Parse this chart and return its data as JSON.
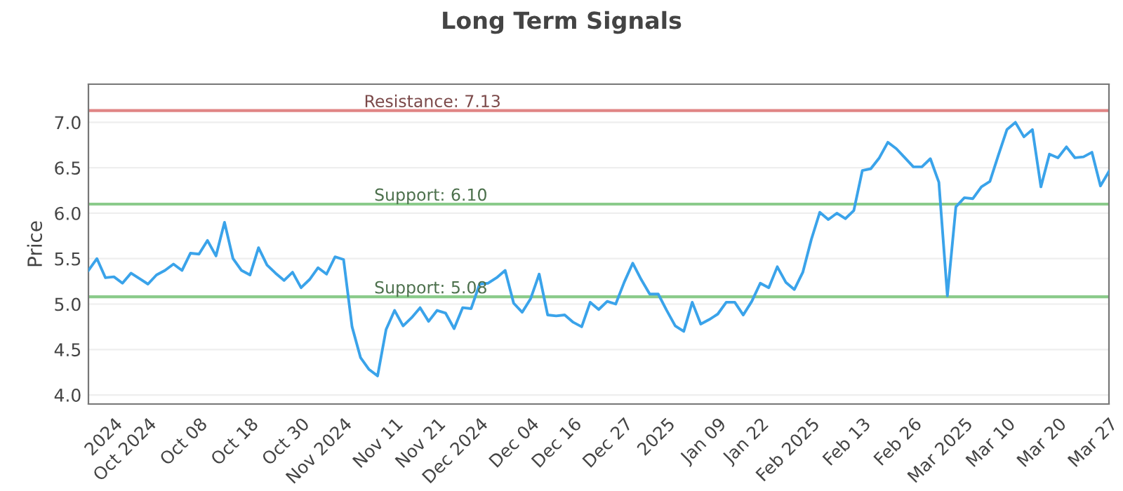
{
  "chart_data": {
    "type": "line",
    "title": "Long Term Signals",
    "ylabel": "Price",
    "categories": [
      null,
      null,
      null,
      "2024",
      null,
      null,
      null,
      "Oct 2024",
      null,
      null,
      null,
      null,
      null,
      "Oct 08",
      null,
      null,
      null,
      null,
      null,
      "Oct 18",
      null,
      null,
      null,
      null,
      null,
      "Oct 30",
      null,
      null,
      null,
      null,
      "Nov 2024",
      null,
      null,
      null,
      null,
      null,
      "Nov 11",
      null,
      null,
      null,
      null,
      "Nov 21",
      null,
      null,
      null,
      null,
      "Dec 2024",
      null,
      null,
      null,
      null,
      null,
      "Dec 04",
      null,
      null,
      null,
      null,
      "Dec 16",
      null,
      null,
      null,
      null,
      null,
      "Dec 27",
      null,
      null,
      null,
      null,
      "2025",
      null,
      null,
      null,
      null,
      null,
      "Jan 09",
      null,
      null,
      null,
      null,
      "Jan 22",
      null,
      null,
      null,
      null,
      null,
      "Feb 2025",
      null,
      null,
      null,
      null,
      null,
      "Feb 13",
      null,
      null,
      null,
      null,
      null,
      "Feb 26",
      null,
      null,
      null,
      null,
      null,
      "Mar 2025",
      null,
      null,
      null,
      null,
      "Mar 10",
      null,
      null,
      null,
      null,
      null,
      "Mar 20",
      null,
      null,
      null,
      null,
      null,
      "Mar 27"
    ],
    "series": [
      {
        "color": "#3aa3ea",
        "values": [
          5.37,
          5.5,
          5.29,
          5.3,
          5.23,
          5.34,
          5.28,
          5.22,
          5.32,
          5.37,
          5.44,
          5.37,
          5.56,
          5.55,
          5.7,
          5.53,
          5.9,
          5.5,
          5.37,
          5.32,
          5.62,
          5.43,
          5.34,
          5.26,
          5.35,
          5.18,
          5.27,
          5.4,
          5.33,
          5.52,
          5.49,
          4.75,
          4.41,
          4.28,
          4.21,
          4.72,
          4.93,
          4.76,
          4.85,
          4.96,
          4.81,
          4.93,
          4.9,
          4.73,
          4.96,
          4.95,
          5.22,
          5.23,
          5.29,
          5.37,
          5.01,
          4.91,
          5.06,
          5.33,
          4.88,
          4.87,
          4.88,
          4.8,
          4.75,
          5.02,
          4.94,
          5.03,
          5.0,
          5.24,
          5.45,
          5.27,
          5.11,
          5.11,
          4.93,
          4.76,
          4.7,
          5.02,
          4.78,
          4.83,
          4.89,
          5.02,
          5.02,
          4.88,
          5.03,
          5.23,
          5.18,
          5.41,
          5.24,
          5.16,
          5.35,
          5.71,
          6.01,
          5.93,
          6.0,
          5.94,
          6.03,
          6.47,
          6.49,
          6.61,
          6.78,
          6.71,
          6.61,
          6.51,
          6.51,
          6.6,
          6.34,
          5.09,
          6.07,
          6.17,
          6.16,
          6.29,
          6.35,
          6.64,
          6.92,
          7.0,
          6.84,
          6.92,
          6.29,
          6.65,
          6.61,
          6.73,
          6.61,
          6.62,
          6.67,
          6.3,
          6.46
        ]
      }
    ],
    "ylim": [
      3.9,
      7.42
    ],
    "yticks": [
      {
        "value": 4,
        "label": "4.0"
      },
      {
        "value": 4.5,
        "label": "4.5"
      },
      {
        "value": 5,
        "label": "5.0"
      },
      {
        "value": 5.5,
        "label": "5.5"
      },
      {
        "value": 6,
        "label": "6.0"
      },
      {
        "value": 6.5,
        "label": "6.5"
      },
      {
        "value": 7,
        "label": "7.0"
      }
    ],
    "grid": "y",
    "ref_lines": [
      {
        "axis": "y",
        "value": 7.13,
        "label": "Resistance: 7.13",
        "color": "#e08585"
      },
      {
        "axis": "y",
        "value": 6.1,
        "label": "Support: 6.10",
        "color": "#8bcb8b"
      },
      {
        "axis": "y",
        "value": 5.08,
        "label": "Support: 5.08",
        "color": "#8bcb8b"
      }
    ]
  }
}
